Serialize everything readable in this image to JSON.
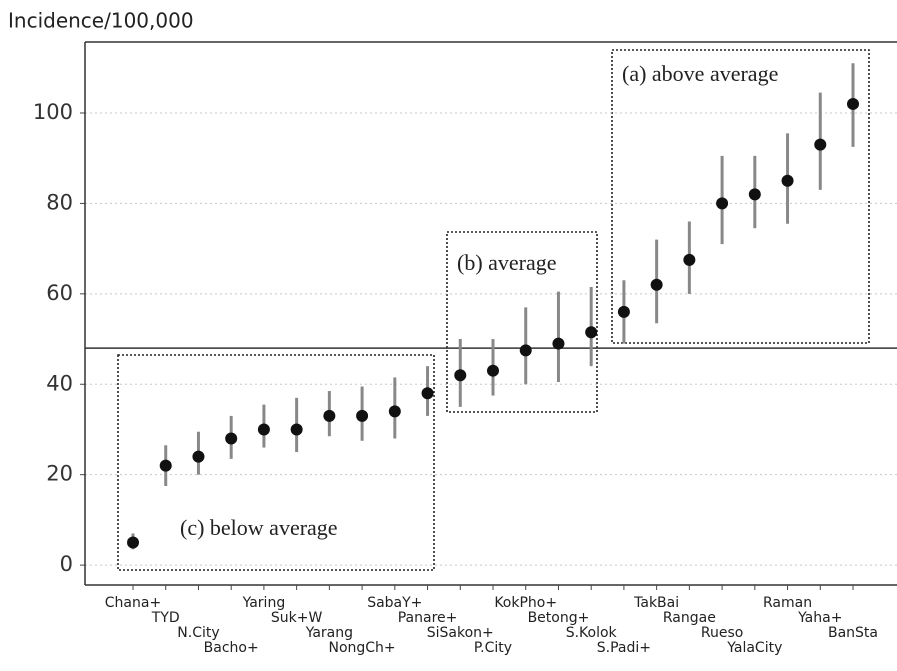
{
  "chart_data": {
    "type": "errorbar",
    "y_axis_label": "Incidence/100,000",
    "categories": [
      "Chana+",
      "TYD",
      "N.City",
      "Bacho+",
      "Yaring",
      "Suk+W",
      "Yarang",
      "NongCh+",
      "SabaY+",
      "Panare+",
      "SiSakon+",
      "P.City",
      "KokPho+",
      "Betong+",
      "S.Kolok",
      "S.Padi+",
      "TakBai",
      "Rangae",
      "Rueso",
      "YalaCity",
      "Raman",
      "Yaha+",
      "BanSta"
    ],
    "values": [
      5,
      22,
      24,
      28,
      30,
      30,
      33,
      33,
      34,
      38,
      42,
      43,
      47.5,
      49,
      51.5,
      56,
      62,
      67.5,
      80,
      82,
      85,
      93,
      102
    ],
    "lower": [
      3.5,
      17.5,
      20,
      23.5,
      26,
      25,
      28.5,
      27.5,
      28,
      33,
      35,
      37.5,
      40,
      40.5,
      44,
      49,
      53.5,
      60,
      71,
      74.5,
      75.5,
      83,
      92.5
    ],
    "upper": [
      7,
      26.5,
      29.5,
      33,
      35.5,
      37,
      38.5,
      39.5,
      41.5,
      44,
      50,
      50,
      57,
      60.5,
      61.5,
      63,
      72,
      76,
      90.5,
      90.5,
      95.5,
      104.5,
      111
    ],
    "color": "#111111",
    "error_color": "#888888",
    "reference_line": 48,
    "annotations": [
      "(a) above average",
      "(b) average",
      "(c) below average"
    ],
    "ylim": [
      -4.4,
      115.7
    ],
    "yticks": [
      0,
      20,
      40,
      60,
      80,
      100
    ],
    "grid": true
  }
}
